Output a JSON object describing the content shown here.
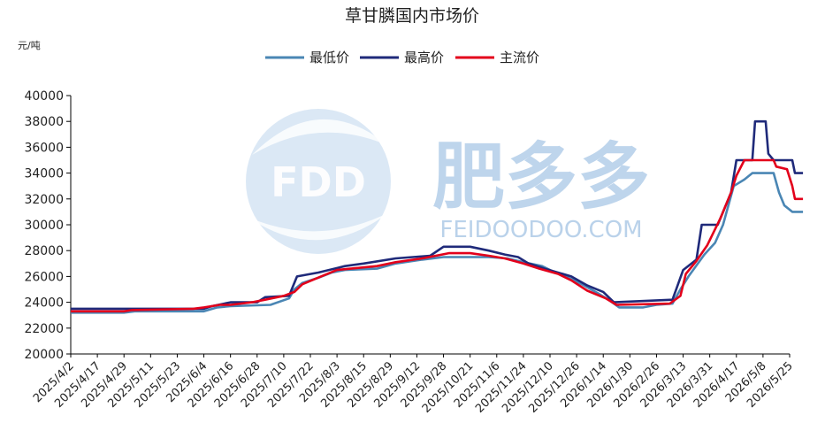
{
  "chart_data": {
    "type": "line",
    "title": "草甘膦国内市场价",
    "unit": "元/吨",
    "ylim": [
      20000,
      40000
    ],
    "yticks": [
      20000,
      22000,
      24000,
      26000,
      28000,
      30000,
      32000,
      34000,
      36000,
      38000,
      40000
    ],
    "xticks": [
      "2025/4/2",
      "2025/4/17",
      "2025/4/29",
      "2025/5/11",
      "2025/5/23",
      "2025/6/4",
      "2025/6/16",
      "2025/6/28",
      "2025/7/10",
      "2025/7/22",
      "2025/8/3",
      "2025/8/15",
      "2025/8/29",
      "2025/9/12",
      "2025/9/28",
      "2025/10/21",
      "2025/11/6",
      "2025/11/24",
      "2025/12/10",
      "2025/12/26",
      "2026/1/14",
      "2026/1/30",
      "2026/2/26",
      "2026/3/13",
      "2026/3/31",
      "2026/4/17",
      "2026/5/8",
      "2026/5/25"
    ],
    "grid": false,
    "legend_position": "top-center",
    "series": [
      {
        "name": "最低价",
        "color": "#4a86b4",
        "values": [
          [
            0,
            23200
          ],
          [
            2,
            23200
          ],
          [
            2.4,
            23300
          ],
          [
            5,
            23300
          ],
          [
            5.5,
            23600
          ],
          [
            6,
            23700
          ],
          [
            7.5,
            23800
          ],
          [
            8.2,
            24300
          ],
          [
            8.4,
            25000
          ],
          [
            8.7,
            25500
          ],
          [
            9.3,
            25900
          ],
          [
            9.8,
            26300
          ],
          [
            10.3,
            26500
          ],
          [
            11.5,
            26600
          ],
          [
            12.2,
            27000
          ],
          [
            13.2,
            27300
          ],
          [
            14,
            27500
          ],
          [
            15,
            27500
          ],
          [
            15.7,
            27500
          ],
          [
            16.4,
            27400
          ],
          [
            17,
            27100
          ],
          [
            17.7,
            26800
          ],
          [
            18.2,
            26300
          ],
          [
            18.8,
            25800
          ],
          [
            19.2,
            25400
          ],
          [
            19.8,
            24700
          ],
          [
            20.2,
            24200
          ],
          [
            20.6,
            23600
          ],
          [
            21.5,
            23600
          ],
          [
            22,
            23800
          ],
          [
            22.6,
            23900
          ],
          [
            22.9,
            25000
          ],
          [
            23.2,
            26000
          ],
          [
            23.8,
            27700
          ],
          [
            24.2,
            28600
          ],
          [
            24.5,
            30000
          ],
          [
            24.9,
            33000
          ],
          [
            25.3,
            33500
          ],
          [
            25.6,
            34000
          ],
          [
            26.4,
            34000
          ],
          [
            26.6,
            32500
          ],
          [
            26.8,
            31500
          ],
          [
            27.1,
            31000
          ],
          [
            27.5,
            31000
          ]
        ]
      },
      {
        "name": "最高价",
        "color": "#1f2a7a",
        "values": [
          [
            0,
            23500
          ],
          [
            5,
            23500
          ],
          [
            5.3,
            23700
          ],
          [
            6,
            24000
          ],
          [
            7,
            24000
          ],
          [
            7.3,
            24400
          ],
          [
            8.2,
            24500
          ],
          [
            8.5,
            26000
          ],
          [
            9.3,
            26300
          ],
          [
            10.3,
            26800
          ],
          [
            11,
            27000
          ],
          [
            12.2,
            27400
          ],
          [
            13.5,
            27600
          ],
          [
            14,
            28300
          ],
          [
            15,
            28300
          ],
          [
            15.7,
            28000
          ],
          [
            16.3,
            27700
          ],
          [
            16.8,
            27500
          ],
          [
            17.2,
            27000
          ],
          [
            17.8,
            26600
          ],
          [
            18.8,
            26000
          ],
          [
            19.4,
            25300
          ],
          [
            20,
            24800
          ],
          [
            20.4,
            24000
          ],
          [
            22.6,
            24200
          ],
          [
            23,
            26500
          ],
          [
            23.5,
            27300
          ],
          [
            23.7,
            30000
          ],
          [
            24.3,
            30000
          ],
          [
            24.8,
            32500
          ],
          [
            25,
            35000
          ],
          [
            25.6,
            35000
          ],
          [
            25.7,
            38000
          ],
          [
            26.1,
            38000
          ],
          [
            26.2,
            35500
          ],
          [
            26.4,
            35000
          ],
          [
            27.1,
            35000
          ],
          [
            27.2,
            34000
          ],
          [
            27.5,
            34000
          ]
        ]
      },
      {
        "name": "主流价",
        "color": "#e3001b",
        "values": [
          [
            0,
            23300
          ],
          [
            2,
            23300
          ],
          [
            2.3,
            23400
          ],
          [
            4.6,
            23500
          ],
          [
            5,
            23600
          ],
          [
            5.6,
            23800
          ],
          [
            6,
            23800
          ],
          [
            6.8,
            24000
          ],
          [
            7.3,
            24200
          ],
          [
            8,
            24500
          ],
          [
            8.4,
            24800
          ],
          [
            8.7,
            25400
          ],
          [
            9.4,
            26000
          ],
          [
            10,
            26500
          ],
          [
            11.5,
            26800
          ],
          [
            12.2,
            27100
          ],
          [
            13.2,
            27400
          ],
          [
            14.2,
            27800
          ],
          [
            15,
            27800
          ],
          [
            15.7,
            27600
          ],
          [
            16.3,
            27400
          ],
          [
            17,
            27000
          ],
          [
            17.6,
            26600
          ],
          [
            18.3,
            26200
          ],
          [
            18.8,
            25700
          ],
          [
            19.4,
            24900
          ],
          [
            20.1,
            24300
          ],
          [
            20.5,
            23800
          ],
          [
            22.5,
            23900
          ],
          [
            22.9,
            24500
          ],
          [
            23.1,
            26200
          ],
          [
            23.5,
            27200
          ],
          [
            23.9,
            28400
          ],
          [
            24.4,
            30500
          ],
          [
            24.8,
            32500
          ],
          [
            25,
            33800
          ],
          [
            25.3,
            35000
          ],
          [
            26.4,
            35000
          ],
          [
            26.5,
            34500
          ],
          [
            26.9,
            34300
          ],
          [
            27.1,
            33000
          ],
          [
            27.2,
            32000
          ],
          [
            27.5,
            32000
          ]
        ]
      }
    ]
  },
  "watermark": {
    "logo_text": "FDD",
    "brand_cn": "肥多多",
    "brand_en": "FEIDOODOO.COM",
    "colors": {
      "light": "#cfe0f2",
      "mid": "#a9c7e6",
      "text": "#8fb3da"
    }
  }
}
